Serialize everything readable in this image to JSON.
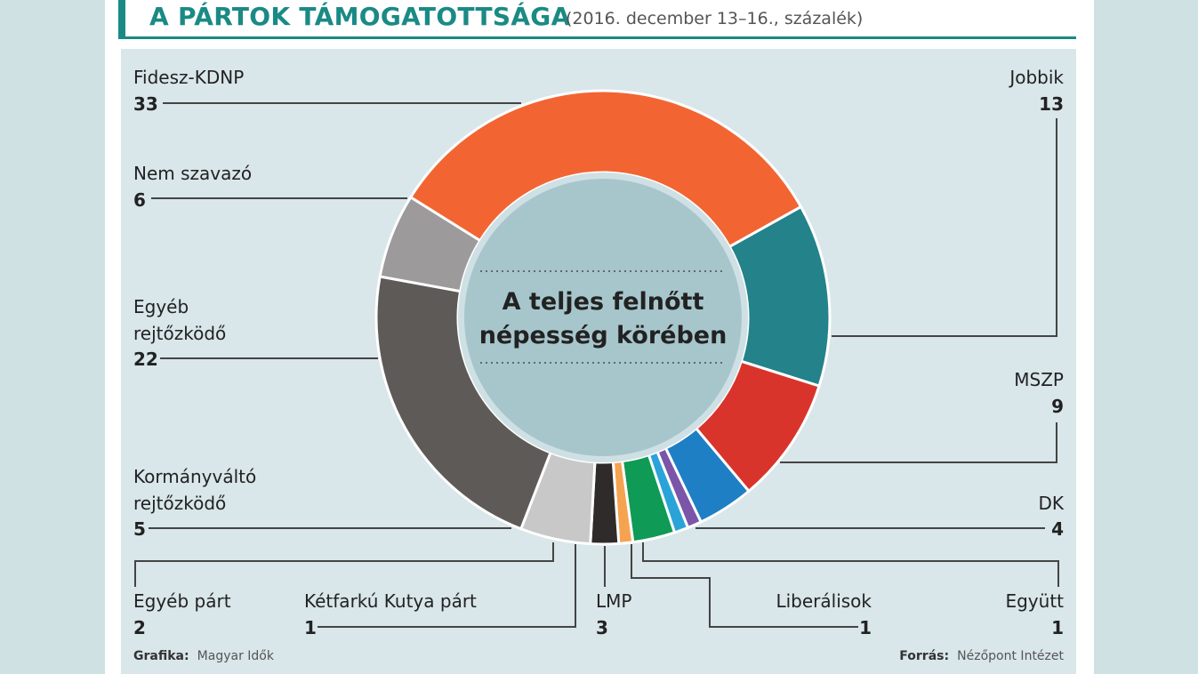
{
  "title": "A PÁRTOK TÁMOGATOTTSÁGA",
  "subtitle": "(2016. december 13–16., százalék)",
  "center_text": [
    "A teljes felnőtt",
    "népesség körében"
  ],
  "footer": {
    "credit_label": "Grafika:",
    "credit_value": "Magyar Idők",
    "source_label": "Forrás:",
    "source_value": "Nézőpont Intézet"
  },
  "chart_data": {
    "type": "pie",
    "title": "A PÁRTOK TÁMOGATOTTSÁGA",
    "subtitle": "(2016. december 13–16., százalék)",
    "series": [
      {
        "label": "Fidesz-KDNP",
        "value": 33,
        "color": "#f26532"
      },
      {
        "label": "Jobbik",
        "value": 13,
        "color": "#23828a"
      },
      {
        "label": "MSZP",
        "value": 9,
        "color": "#d9342b"
      },
      {
        "label": "DK",
        "value": 4,
        "color": "#1e7fc4"
      },
      {
        "label": "Együtt",
        "value": 1,
        "color": "#7a55a8"
      },
      {
        "label": "Liberálisok",
        "value": 1,
        "color": "#2aa4d8"
      },
      {
        "label": "LMP",
        "value": 3,
        "color": "#0f9a55"
      },
      {
        "label": "Kétfarkú Kutya párt",
        "value": 1,
        "color": "#f6a351"
      },
      {
        "label": "Egyéb párt",
        "value": 2,
        "color": "#2f2b2a"
      },
      {
        "label": "Kormányváltó rejtőzködő",
        "value": 5,
        "color": "#c8c8c8"
      },
      {
        "label": "Egyéb rejtőzködő",
        "value": 22,
        "color": "#5e5a58"
      },
      {
        "label": "Nem szavazó",
        "value": 6,
        "color": "#9c9a9a"
      }
    ]
  }
}
